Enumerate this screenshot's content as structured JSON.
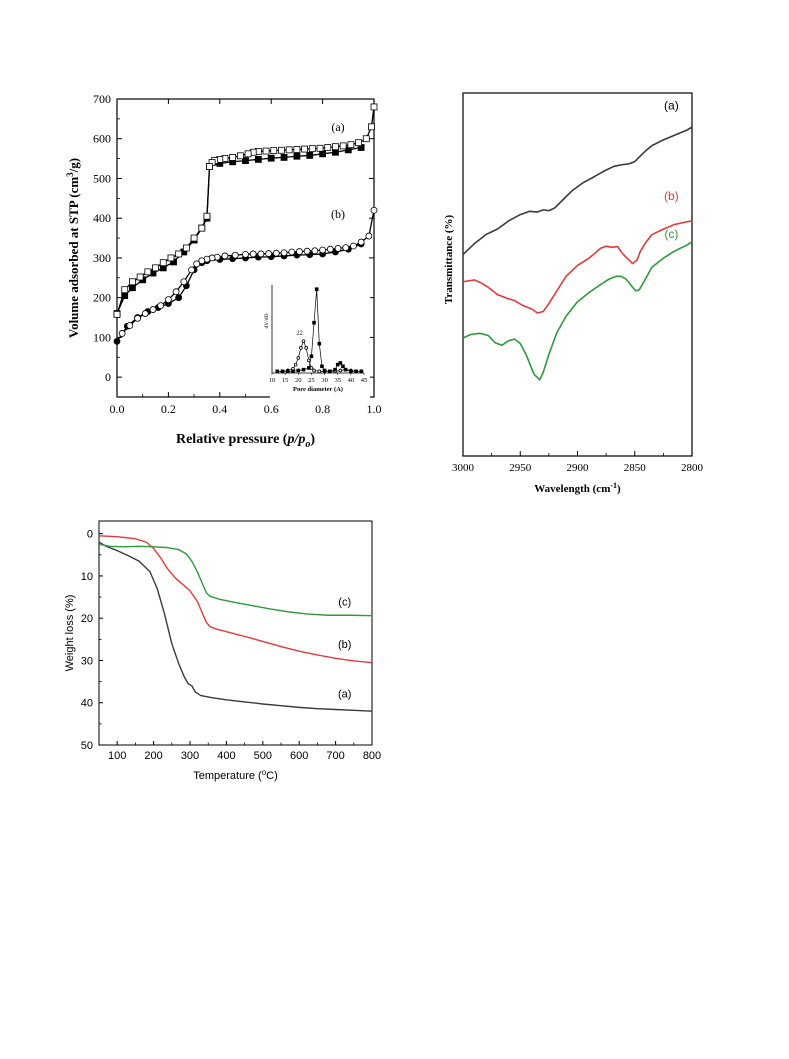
{
  "chart_data": [
    {
      "type": "scatter",
      "panel": "isotherm",
      "xlabel_main": "Relative pressure (",
      "xlabel_italic": "p/p",
      "xlabel_sub": "o",
      "xlabel_end": ")",
      "ylabel_main": "Volume adsorbed at STP (cm",
      "ylabel_sup": "3",
      "ylabel_end": "/g)",
      "xlim": [
        0.0,
        1.0
      ],
      "ylim": [
        -50,
        700
      ],
      "xticks": [
        0.0,
        0.2,
        0.4,
        0.6,
        0.8,
        1.0
      ],
      "xtick_labels": [
        "0.0",
        "0.2",
        "0.4",
        "0.6",
        "0.8",
        "1.0"
      ],
      "yticks": [
        0,
        100,
        200,
        300,
        400,
        500,
        600,
        700
      ],
      "ytick_labels": [
        "0",
        "100",
        "200",
        "300",
        "400",
        "500",
        "600",
        "700"
      ],
      "annotations": [
        {
          "text": "(a)",
          "x": 0.86,
          "y": 620
        },
        {
          "text": "(b)",
          "x": 0.86,
          "y": 400
        }
      ],
      "series": [
        {
          "label": "(a)",
          "kind": "adsorption",
          "marker": "square-filled",
          "x": [
            0.0,
            0.03,
            0.06,
            0.1,
            0.14,
            0.18,
            0.22,
            0.26,
            0.3,
            0.33,
            0.35,
            0.36,
            0.4,
            0.45,
            0.5,
            0.55,
            0.6,
            0.65,
            0.7,
            0.75,
            0.8,
            0.85,
            0.9,
            0.95
          ],
          "y": [
            160,
            205,
            225,
            245,
            262,
            275,
            290,
            315,
            345,
            375,
            400,
            530,
            538,
            542,
            545,
            548,
            551,
            553,
            556,
            558,
            562,
            566,
            572,
            578
          ]
        },
        {
          "label": "(a)",
          "kind": "desorption",
          "marker": "square-open",
          "x": [
            1.0,
            0.99,
            0.97,
            0.94,
            0.91,
            0.88,
            0.85,
            0.82,
            0.79,
            0.76,
            0.73,
            0.7,
            0.67,
            0.64,
            0.61,
            0.58,
            0.55,
            0.53,
            0.51,
            0.48,
            0.45,
            0.42,
            0.4,
            0.38,
            0.37,
            0.36,
            0.35,
            0.33,
            0.3,
            0.27,
            0.24,
            0.21,
            0.18,
            0.15,
            0.12,
            0.09,
            0.06,
            0.03,
            0.0
          ],
          "y": [
            680,
            630,
            600,
            590,
            585,
            582,
            580,
            578,
            576,
            575,
            574,
            573,
            572,
            571,
            570,
            569,
            568,
            566,
            562,
            557,
            553,
            550,
            548,
            545,
            540,
            530,
            405,
            375,
            350,
            325,
            310,
            300,
            288,
            275,
            265,
            252,
            240,
            220,
            158
          ]
        },
        {
          "label": "(b)",
          "kind": "adsorption",
          "marker": "circle-filled",
          "x": [
            0.0,
            0.04,
            0.08,
            0.12,
            0.16,
            0.2,
            0.24,
            0.27,
            0.3,
            0.33,
            0.35,
            0.4,
            0.45,
            0.5,
            0.55,
            0.6,
            0.65,
            0.7,
            0.75,
            0.8,
            0.85,
            0.9,
            0.95
          ],
          "y": [
            90,
            128,
            150,
            165,
            175,
            185,
            200,
            230,
            270,
            288,
            293,
            296,
            298,
            300,
            302,
            303,
            305,
            307,
            308,
            310,
            315,
            322,
            335
          ]
        },
        {
          "label": "(b)",
          "kind": "desorption",
          "marker": "circle-open",
          "x": [
            1.0,
            0.98,
            0.95,
            0.92,
            0.89,
            0.86,
            0.83,
            0.8,
            0.77,
            0.74,
            0.71,
            0.68,
            0.65,
            0.62,
            0.59,
            0.56,
            0.53,
            0.5,
            0.46,
            0.42,
            0.39,
            0.37,
            0.35,
            0.33,
            0.31,
            0.29,
            0.26,
            0.23,
            0.2,
            0.17,
            0.14,
            0.11,
            0.08,
            0.05,
            0.02
          ],
          "y": [
            420,
            355,
            340,
            330,
            326,
            324,
            322,
            320,
            318,
            317,
            316,
            315,
            313,
            312,
            311,
            310,
            310,
            309,
            307,
            305,
            302,
            300,
            297,
            293,
            285,
            270,
            240,
            215,
            195,
            180,
            170,
            160,
            148,
            130,
            110
          ]
        }
      ],
      "inset": {
        "xlabel": "Pore diameter (A)",
        "ylabel": "dV/dD",
        "xlim": [
          10,
          45
        ],
        "xticks": [
          10,
          15,
          20,
          25,
          30,
          35,
          40,
          45
        ],
        "xtick_labels": [
          "10",
          "15",
          "20",
          "25",
          "30",
          "35",
          "40",
          "45"
        ],
        "annotation": "22",
        "series": [
          {
            "marker": "circle-open",
            "x": [
              12,
              14,
              16,
              18,
              19,
              20,
              21,
              22,
              23,
              24,
              25,
              26,
              28,
              30,
              32,
              34,
              36,
              38,
              40,
              42,
              44
            ],
            "y": [
              0.02,
              0.02,
              0.03,
              0.05,
              0.1,
              0.18,
              0.3,
              0.38,
              0.3,
              0.15,
              0.06,
              0.03,
              0.02,
              0.02,
              0.02,
              0.02,
              0.03,
              0.04,
              0.03,
              0.02,
              0.02
            ]
          },
          {
            "marker": "square-filled",
            "x": [
              12,
              14,
              16,
              18,
              20,
              22,
              24,
              25,
              26,
              27,
              28,
              29,
              30,
              32,
              34,
              35,
              36,
              37,
              38,
              40,
              42,
              44
            ],
            "y": [
              0.02,
              0.02,
              0.02,
              0.02,
              0.03,
              0.04,
              0.06,
              0.2,
              0.6,
              1.0,
              0.35,
              0.08,
              0.03,
              0.02,
              0.04,
              0.1,
              0.12,
              0.08,
              0.04,
              0.02,
              0.02,
              0.02
            ]
          }
        ]
      }
    },
    {
      "type": "line",
      "panel": "ftir",
      "xlabel": "Wavelength (cm",
      "xlabel_sup": "-1",
      "xlabel_end": ")",
      "ylabel": "Transmittance (%)",
      "xlim": [
        3000,
        2800
      ],
      "xticks": [
        3000,
        2950,
        2900,
        2850,
        2800
      ],
      "xtick_labels": [
        "3000",
        "2950",
        "2900",
        "2850",
        "2800"
      ],
      "yticks_shown": false,
      "ylim": [
        0,
        100
      ],
      "series": [
        {
          "label": "(a)",
          "color": "#3a3a3a",
          "x": [
            3000,
            2990,
            2980,
            2970,
            2960,
            2950,
            2942,
            2935,
            2930,
            2925,
            2920,
            2912,
            2905,
            2895,
            2885,
            2875,
            2868,
            2862,
            2855,
            2850,
            2845,
            2840,
            2835,
            2825,
            2815,
            2805,
            2800
          ],
          "y": [
            55.5,
            58.5,
            61.0,
            62.5,
            64.8,
            66.5,
            67.4,
            67.2,
            67.8,
            67.6,
            68.3,
            70.8,
            73.0,
            75.3,
            77.0,
            78.8,
            79.8,
            80.2,
            80.5,
            81.1,
            82.7,
            84.2,
            85.5,
            87.1,
            88.4,
            89.7,
            90.6
          ]
        },
        {
          "label": "(b)",
          "color": "#e5393a",
          "x": [
            3000,
            2990,
            2985,
            2978,
            2970,
            2962,
            2955,
            2948,
            2940,
            2935,
            2930,
            2925,
            2918,
            2910,
            2900,
            2890,
            2885,
            2880,
            2875,
            2870,
            2865,
            2860,
            2855,
            2852,
            2848,
            2845,
            2840,
            2835,
            2825,
            2815,
            2805,
            2800
          ],
          "y": [
            48.0,
            48.5,
            47.8,
            46.5,
            44.5,
            43.5,
            42.8,
            41.5,
            40.5,
            39.4,
            39.8,
            42.0,
            45.5,
            49.5,
            52.5,
            54.5,
            55.8,
            57.2,
            57.8,
            57.5,
            57.7,
            55.5,
            54.0,
            53.0,
            54.0,
            56.5,
            59.0,
            61.0,
            62.5,
            63.8,
            64.5,
            64.8
          ]
        },
        {
          "label": "(c)",
          "color": "#2e9a3a",
          "x": [
            3000,
            2993,
            2985,
            2978,
            2972,
            2966,
            2960,
            2955,
            2950,
            2945,
            2938,
            2933,
            2930,
            2925,
            2918,
            2910,
            2900,
            2890,
            2880,
            2872,
            2866,
            2862,
            2858,
            2855,
            2852,
            2849,
            2846,
            2842,
            2835,
            2825,
            2815,
            2805,
            2800
          ],
          "y": [
            32.5,
            33.5,
            33.8,
            33.2,
            31.2,
            30.5,
            31.8,
            32.2,
            31.0,
            28.0,
            22.5,
            21.0,
            23.0,
            28.0,
            34.0,
            38.5,
            42.5,
            45.0,
            47.2,
            48.8,
            49.5,
            49.5,
            48.8,
            47.8,
            46.5,
            45.5,
            45.8,
            48.0,
            52.0,
            54.5,
            56.5,
            58.0,
            59.0
          ]
        }
      ],
      "annotations": [
        {
          "text": "(a)",
          "color": "#000000",
          "x": 2818,
          "y": 95.5
        },
        {
          "text": "(b)",
          "color": "#e5393a",
          "x": 2818,
          "y": 70.5
        },
        {
          "text": "(c)",
          "color": "#2e9a3a",
          "x": 2818,
          "y": 60.0
        }
      ]
    },
    {
      "type": "line",
      "panel": "tga",
      "xlabel_main": "Temperature (",
      "xlabel_sup": "o",
      "xlabel_end": "C)",
      "ylabel": "Weight loss (%)",
      "xlim": [
        50,
        800
      ],
      "ylim": [
        -3,
        50
      ],
      "y_inverted": true,
      "xticks": [
        100,
        200,
        300,
        400,
        500,
        600,
        700,
        800
      ],
      "xtick_labels": [
        "100",
        "200",
        "300",
        "400",
        "500",
        "600",
        "700",
        "800"
      ],
      "yticks": [
        0,
        10,
        20,
        30,
        40,
        50
      ],
      "ytick_labels": [
        "0",
        "10",
        "20",
        "30",
        "40",
        "50"
      ],
      "series": [
        {
          "label": "(a)",
          "color": "#3a3a3a",
          "x": [
            50,
            70,
            100,
            130,
            160,
            190,
            210,
            230,
            250,
            270,
            285,
            295,
            305,
            315,
            330,
            360,
            400,
            450,
            500,
            550,
            600,
            650,
            700,
            750,
            800
          ],
          "y": [
            2.0,
            3.0,
            4.0,
            5.2,
            6.5,
            9.0,
            13.0,
            19.0,
            26.0,
            31.0,
            34.0,
            35.5,
            36.0,
            37.5,
            38.3,
            38.8,
            39.3,
            39.8,
            40.3,
            40.7,
            41.1,
            41.4,
            41.6,
            41.8,
            42.0
          ]
        },
        {
          "label": "(b)",
          "color": "#e5393a",
          "x": [
            50,
            100,
            150,
            180,
            200,
            220,
            240,
            260,
            280,
            300,
            320,
            335,
            345,
            355,
            370,
            400,
            450,
            500,
            550,
            600,
            650,
            700,
            750,
            800
          ],
          "y": [
            0.5,
            0.7,
            1.2,
            2.0,
            3.5,
            5.8,
            8.5,
            10.5,
            12.0,
            13.5,
            16.0,
            19.0,
            21.0,
            22.0,
            22.5,
            23.2,
            24.3,
            25.5,
            26.7,
            27.8,
            28.7,
            29.5,
            30.1,
            30.5
          ]
        },
        {
          "label": "(c)",
          "color": "#2e9a3a",
          "x": [
            50,
            80,
            120,
            160,
            200,
            240,
            270,
            290,
            305,
            320,
            335,
            345,
            355,
            380,
            420,
            470,
            520,
            570,
            620,
            680,
            740,
            800
          ],
          "y": [
            2.5,
            3.0,
            3.1,
            3.0,
            3.1,
            3.3,
            3.8,
            4.8,
            6.5,
            9.0,
            12.0,
            14.0,
            14.8,
            15.5,
            16.2,
            17.0,
            17.8,
            18.5,
            19.0,
            19.3,
            19.3,
            19.4
          ]
        }
      ],
      "annotations": [
        {
          "text": "(c)",
          "x": 725,
          "y": 17.0
        },
        {
          "text": "(b)",
          "x": 725,
          "y": 27.0
        },
        {
          "text": "(a)",
          "x": 725,
          "y": 38.8
        }
      ]
    }
  ]
}
